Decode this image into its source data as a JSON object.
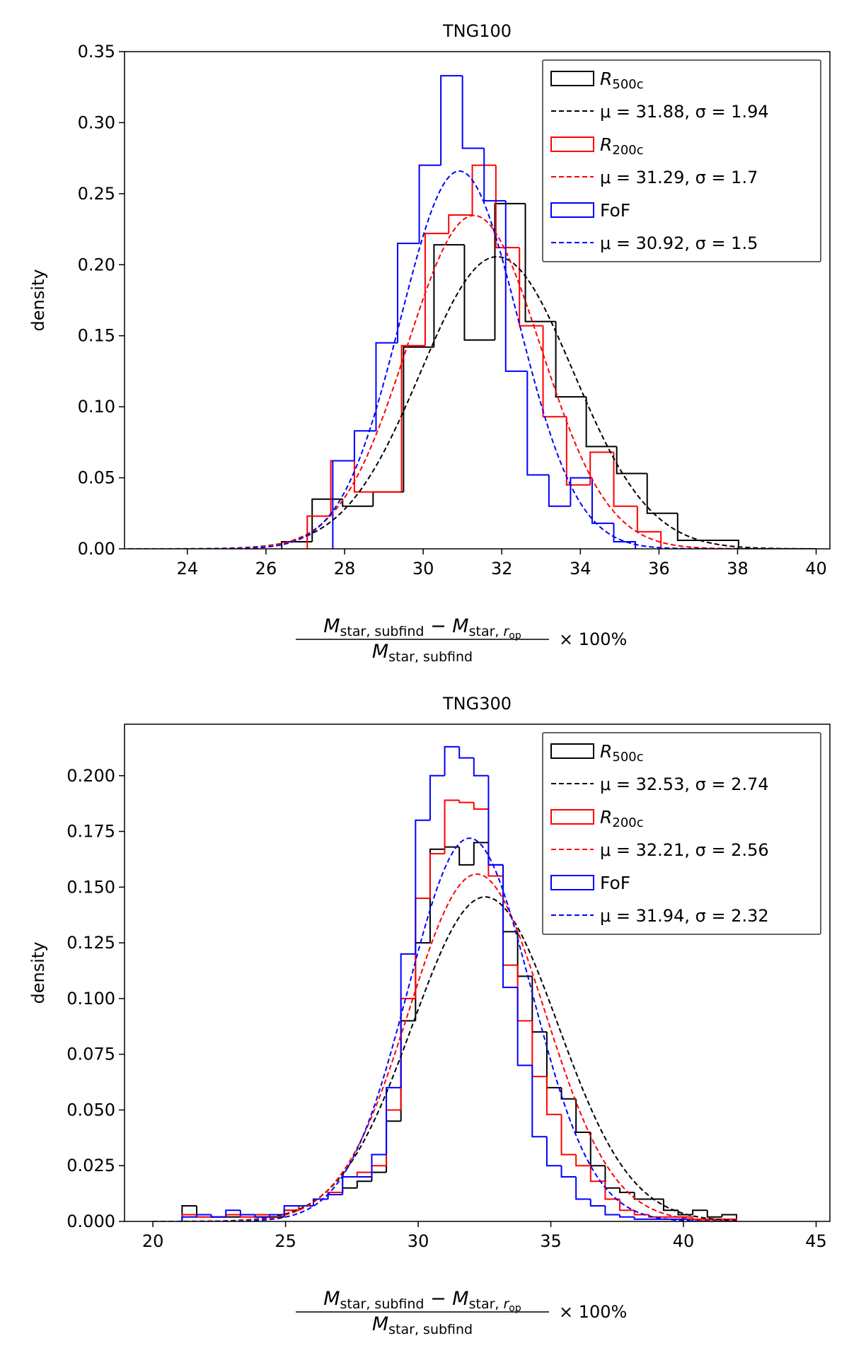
{
  "chart_data": [
    {
      "type": "histogram",
      "title": "TNG100",
      "ylabel": "density",
      "xlabel": {
        "numerator": [
          {
            "text": "M",
            "style": "i"
          },
          {
            "text": "star, subfind",
            "style": "sub"
          },
          {
            "text": " − "
          },
          {
            "text": "M",
            "style": "i"
          },
          {
            "text": "star, ",
            "style": "sub"
          },
          {
            "text": "r",
            "style": "subi"
          },
          {
            "text": "op",
            "style": "subsub"
          }
        ],
        "denominator": [
          {
            "text": "M",
            "style": "i"
          },
          {
            "text": "star, subfind",
            "style": "sub"
          }
        ],
        "suffix": "× 100%"
      },
      "xlim": [
        22.4,
        40.35
      ],
      "ylim": [
        0,
        0.35
      ],
      "xticks": [
        24,
        26,
        28,
        30,
        32,
        34,
        36,
        38,
        40
      ],
      "yticks": [
        {
          "value": 0,
          "label": "0.00"
        },
        0.05,
        {
          "value": 0.1,
          "label": "0.10"
        },
        0.15,
        {
          "value": 0.2,
          "label": "0.20"
        },
        0.25,
        {
          "value": 0.3,
          "label": "0.30"
        },
        0.35
      ],
      "legend": "upper right",
      "series": [
        {
          "name": "R",
          "name_sub": "500c",
          "color": "#000000",
          "bins": [
            26.4,
            27.175,
            27.95,
            28.725,
            29.5,
            30.275,
            31.05,
            31.825,
            32.6,
            33.375,
            34.15,
            34.925,
            35.7,
            36.475,
            37.25,
            38.025
          ],
          "values": [
            0.005,
            0.035,
            0.03,
            0.04,
            0.142,
            0.214,
            0.147,
            0.243,
            0.16,
            0.107,
            0.072,
            0.053,
            0.025,
            0.006,
            0.006
          ]
        },
        {
          "name": "R",
          "name_sub": "200c",
          "color": "#ff0000",
          "bins": [
            27.05,
            27.65,
            28.25,
            28.85,
            29.45,
            30.05,
            30.65,
            31.25,
            31.85,
            32.45,
            33.05,
            33.65,
            34.25,
            34.85,
            35.45,
            36.05
          ],
          "values": [
            0.023,
            0.062,
            0.04,
            0.04,
            0.143,
            0.222,
            0.235,
            0.27,
            0.212,
            0.157,
            0.093,
            0.045,
            0.068,
            0.03,
            0.012
          ]
        },
        {
          "name": "FoF",
          "color": "#0000ff",
          "bins": [
            27.7,
            28.25,
            28.8,
            29.35,
            29.9,
            30.45,
            31.0,
            31.55,
            32.1,
            32.65,
            33.2,
            33.75,
            34.3,
            34.85,
            35.4
          ],
          "values": [
            0.062,
            0.083,
            0.145,
            0.215,
            0.27,
            0.333,
            0.282,
            0.245,
            0.125,
            0.052,
            0.03,
            0.05,
            0.018,
            0.005
          ]
        }
      ],
      "fits": [
        {
          "label": "μ = 31.88, σ = 1.94",
          "mu": 31.88,
          "sigma": 1.94,
          "color": "#000000",
          "range": [
            22.5,
            40
          ]
        },
        {
          "label": "μ = 31.29, σ = 1.7",
          "mu": 31.29,
          "sigma": 1.7,
          "color": "#ff0000",
          "range": [
            22.5,
            40
          ]
        },
        {
          "label": "μ = 30.92, σ = 1.5",
          "mu": 30.92,
          "sigma": 1.5,
          "color": "#0000ff",
          "range": [
            22.5,
            40
          ]
        }
      ]
    },
    {
      "type": "histogram",
      "title": "TNG300",
      "ylabel": "density",
      "xlabel": {
        "numerator": [
          {
            "text": "M",
            "style": "i"
          },
          {
            "text": "star, subfind",
            "style": "sub"
          },
          {
            "text": " − "
          },
          {
            "text": "M",
            "style": "i"
          },
          {
            "text": "star, ",
            "style": "sub"
          },
          {
            "text": "r",
            "style": "subi"
          },
          {
            "text": "op",
            "style": "subsub"
          }
        ],
        "denominator": [
          {
            "text": "M",
            "style": "i"
          },
          {
            "text": "star, subfind",
            "style": "sub"
          }
        ],
        "suffix": "× 100%"
      },
      "xlim": [
        18.93,
        45.52
      ],
      "ylim": [
        0,
        0.2231
      ],
      "xticks": [
        20,
        25,
        30,
        35,
        40,
        45
      ],
      "yticks": [
        {
          "value": 0,
          "label": "0.000"
        },
        0.025,
        {
          "value": 0.05,
          "label": "0.050"
        },
        0.075,
        {
          "value": 0.1,
          "label": "0.100"
        },
        0.125,
        {
          "value": 0.15,
          "label": "0.150"
        },
        0.175,
        {
          "value": 0.2,
          "label": "0.200"
        }
      ],
      "legend": "upper right",
      "series": [
        {
          "name": "R",
          "name_sub": "500c",
          "color": "#000000",
          "bins": [
            21.1,
            21.65,
            22.2,
            22.75,
            23.3,
            23.85,
            24.4,
            24.95,
            25.5,
            26.05,
            26.6,
            27.15,
            27.7,
            28.25,
            28.8,
            29.35,
            29.9,
            30.45,
            31.0,
            31.55,
            32.1,
            32.65,
            33.2,
            33.75,
            34.3,
            34.85,
            35.4,
            35.95,
            36.5,
            37.05,
            37.6,
            38.15,
            38.7,
            39.25,
            39.8,
            40.35,
            40.9,
            41.45,
            42.0
          ],
          "values": [
            0.007,
            0.003,
            0.002,
            0.002,
            0.003,
            0.002,
            0.002,
            0.005,
            0.007,
            0.01,
            0.013,
            0.015,
            0.018,
            0.022,
            0.045,
            0.09,
            0.125,
            0.167,
            0.168,
            0.16,
            0.17,
            0.16,
            0.13,
            0.11,
            0.085,
            0.06,
            0.055,
            0.04,
            0.025,
            0.015,
            0.013,
            0.01,
            0.01,
            0.005,
            0.003,
            0.005,
            0.002,
            0.003
          ]
        },
        {
          "name": "R",
          "name_sub": "200c",
          "color": "#ff0000",
          "bins": [
            21.1,
            21.65,
            22.2,
            22.75,
            23.3,
            23.85,
            24.4,
            24.95,
            25.5,
            26.05,
            26.6,
            27.15,
            27.7,
            28.25,
            28.8,
            29.35,
            29.9,
            30.45,
            31.0,
            31.55,
            32.1,
            32.65,
            33.2,
            33.75,
            34.3,
            34.85,
            35.4,
            35.95,
            36.5,
            37.05,
            37.6,
            38.15,
            38.7,
            39.25,
            39.8,
            40.35,
            40.9,
            41.45,
            42.0
          ],
          "values": [
            0.003,
            0.002,
            0.002,
            0.003,
            0.002,
            0.003,
            0.003,
            0.005,
            0.007,
            0.01,
            0.013,
            0.02,
            0.022,
            0.025,
            0.05,
            0.1,
            0.145,
            0.165,
            0.189,
            0.188,
            0.185,
            0.155,
            0.115,
            0.09,
            0.065,
            0.048,
            0.03,
            0.025,
            0.018,
            0.01,
            0.005,
            0.003,
            0.002,
            0.002,
            0.002,
            0.001,
            0.001,
            0.001
          ]
        },
        {
          "name": "FoF",
          "color": "#0000ff",
          "bins": [
            21.1,
            21.65,
            22.2,
            22.75,
            23.3,
            23.85,
            24.4,
            24.95,
            25.5,
            26.05,
            26.6,
            27.15,
            27.7,
            28.25,
            28.8,
            29.35,
            29.9,
            30.45,
            31.0,
            31.55,
            32.1,
            32.65,
            33.2,
            33.75,
            34.3,
            34.85,
            35.4,
            35.95,
            36.5,
            37.05,
            37.6,
            38.15,
            38.7,
            39.25,
            39.8,
            40.35,
            40.9,
            41.45,
            42.0
          ],
          "values": [
            0.002,
            0.003,
            0.002,
            0.005,
            0.003,
            0.002,
            0.003,
            0.007,
            0.007,
            0.01,
            0.012,
            0.02,
            0.02,
            0.03,
            0.06,
            0.12,
            0.18,
            0.2,
            0.213,
            0.208,
            0.2,
            0.16,
            0.105,
            0.07,
            0.038,
            0.025,
            0.02,
            0.01,
            0.007,
            0.003,
            0.002,
            0.001,
            0.001,
            0.001,
            0.001,
            0,
            0,
            0
          ]
        }
      ],
      "fits": [
        {
          "label": "μ = 32.53, σ = 2.74",
          "mu": 32.53,
          "sigma": 2.74,
          "color": "#000000",
          "range": [
            20,
            42
          ]
        },
        {
          "label": "μ = 32.21, σ = 2.56",
          "mu": 32.21,
          "sigma": 2.56,
          "color": "#ff0000",
          "range": [
            20,
            42
          ]
        },
        {
          "label": "μ = 31.94, σ = 2.32",
          "mu": 31.94,
          "sigma": 2.32,
          "color": "#0000ff",
          "range": [
            20,
            42
          ]
        }
      ]
    }
  ]
}
